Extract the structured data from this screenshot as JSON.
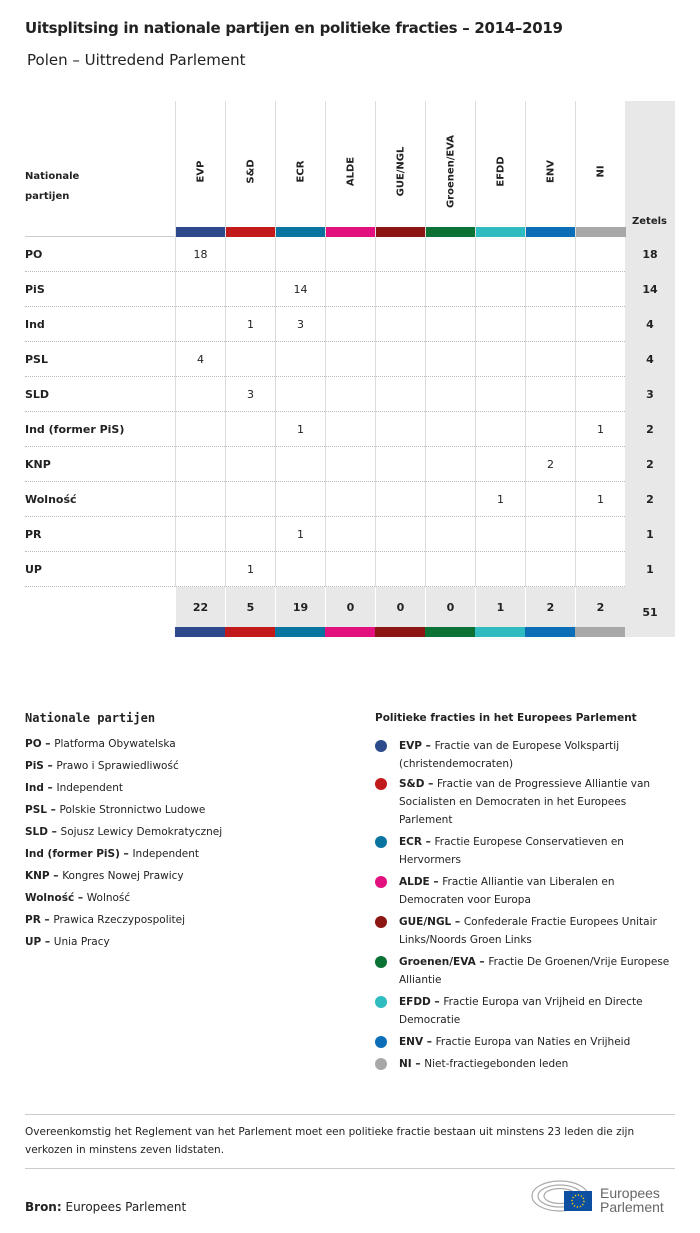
{
  "title": "Uitsplitsing in nationale partijen en politieke fracties – 2014–2019",
  "subtitle": "Polen – Uittredend Parlement",
  "chart_data": {
    "type": "table",
    "row_header": "Nationale partijen",
    "total_header": "Zetels",
    "groups": [
      {
        "name": "EVP",
        "color": "#2c4a8c"
      },
      {
        "name": "S&D",
        "color": "#c21a1a"
      },
      {
        "name": "ECR",
        "color": "#0a74a0"
      },
      {
        "name": "ALDE",
        "color": "#e3117f"
      },
      {
        "name": "GUE/NGL",
        "color": "#8b1612"
      },
      {
        "name": "Groenen/EVA",
        "color": "#0a7234"
      },
      {
        "name": "EFDD",
        "color": "#2ebcc0"
      },
      {
        "name": "ENV",
        "color": "#0d6eb8"
      },
      {
        "name": "NI",
        "color": "#a8a8a8"
      }
    ],
    "rows": [
      {
        "party": "PO",
        "values": [
          18,
          null,
          null,
          null,
          null,
          null,
          null,
          null,
          null
        ],
        "total": 18
      },
      {
        "party": "PiS",
        "values": [
          null,
          null,
          14,
          null,
          null,
          null,
          null,
          null,
          null
        ],
        "total": 14
      },
      {
        "party": "Ind",
        "values": [
          null,
          1,
          3,
          null,
          null,
          null,
          null,
          null,
          null
        ],
        "total": 4
      },
      {
        "party": "PSL",
        "values": [
          4,
          null,
          null,
          null,
          null,
          null,
          null,
          null,
          null
        ],
        "total": 4
      },
      {
        "party": "SLD",
        "values": [
          null,
          3,
          null,
          null,
          null,
          null,
          null,
          null,
          null
        ],
        "total": 3
      },
      {
        "party": "Ind (former PiS)",
        "values": [
          null,
          null,
          1,
          null,
          null,
          null,
          null,
          null,
          1
        ],
        "total": 2
      },
      {
        "party": "KNP",
        "values": [
          null,
          null,
          null,
          null,
          null,
          null,
          null,
          2,
          null
        ],
        "total": 2
      },
      {
        "party": "Wolność",
        "values": [
          null,
          null,
          null,
          null,
          null,
          null,
          1,
          null,
          1
        ],
        "total": 2
      },
      {
        "party": "PR",
        "values": [
          null,
          null,
          1,
          null,
          null,
          null,
          null,
          null,
          null
        ],
        "total": 1
      },
      {
        "party": "UP",
        "values": [
          null,
          1,
          null,
          null,
          null,
          null,
          null,
          null,
          null
        ],
        "total": 1
      }
    ],
    "totals": [
      22,
      5,
      19,
      0,
      0,
      0,
      1,
      2,
      2
    ],
    "grand_total": 51
  },
  "legend_left": {
    "heading": "Nationale partijen",
    "items": [
      {
        "abbr": "PO",
        "name": "Platforma Obywatelska"
      },
      {
        "abbr": "PiS",
        "name": "Prawo i Sprawiedliwość"
      },
      {
        "abbr": "Ind",
        "name": "Independent"
      },
      {
        "abbr": "PSL",
        "name": "Polskie Stronnictwo Ludowe"
      },
      {
        "abbr": "SLD",
        "name": "Sojusz Lewicy Demokratycznej"
      },
      {
        "abbr": "Ind (former PiS)",
        "name": "Independent"
      },
      {
        "abbr": "KNP",
        "name": "Kongres Nowej Prawicy"
      },
      {
        "abbr": "Wolność",
        "name": "Wolność"
      },
      {
        "abbr": "PR",
        "name": "Prawica Rzeczypospolitej"
      },
      {
        "abbr": "UP",
        "name": "Unia Pracy"
      }
    ]
  },
  "legend_right": {
    "heading": "Politieke fracties in het Europees Parlement",
    "items": [
      {
        "abbr": "EVP",
        "name": "Fractie van de Europese Volkspartij (christendemocraten)"
      },
      {
        "abbr": "S&D",
        "name": "Fractie van de Progressieve Alliantie van Socialisten en Democraten in het Europees Parlement"
      },
      {
        "abbr": "ECR",
        "name": "Fractie Europese Conservatieven en Hervormers"
      },
      {
        "abbr": "ALDE",
        "name": "Fractie Alliantie van Liberalen en Democraten voor Europa"
      },
      {
        "abbr": "GUE/NGL",
        "name": "Confederale Fractie Europees Unitair Links/Noords Groen Links"
      },
      {
        "abbr": "Groenen/EVA",
        "name": "Fractie De Groenen/Vrije Europese Alliantie"
      },
      {
        "abbr": "EFDD",
        "name": "Fractie Europa van Vrijheid en Directe Democratie"
      },
      {
        "abbr": "ENV",
        "name": "Fractie Europa van Naties en Vrijheid"
      },
      {
        "abbr": "NI",
        "name": "Niet-fractiegebonden leden"
      }
    ]
  },
  "note": "Overeenkomstig het Reglement van het Parlement moet een politieke fractie bestaan uit minstens 23 leden die zijn verkozen in minstens zeven lidstaten.",
  "source": {
    "label": "Bron:",
    "value": "Europees Parlement"
  },
  "logo": {
    "text": "Europees Parlement"
  }
}
